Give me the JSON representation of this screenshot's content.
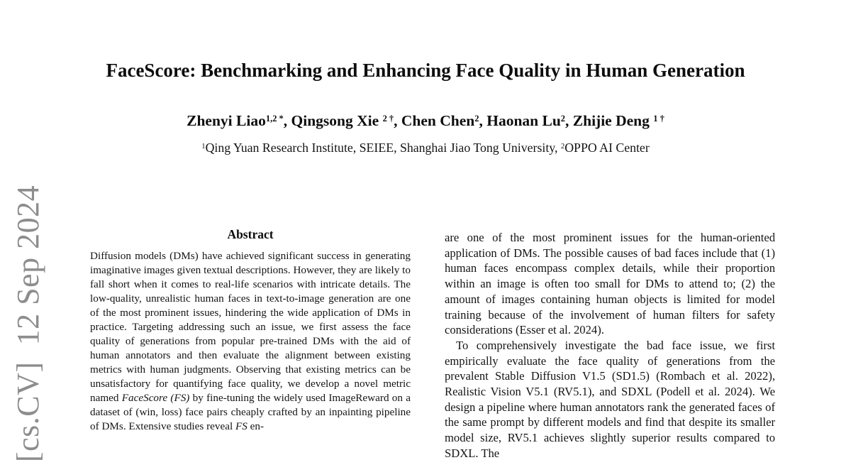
{
  "page": {
    "background": "#ffffff",
    "text_color": "#141414"
  },
  "arxiv_watermark": {
    "text": "[cs.CV]  12 Sep 2024",
    "color": "#8d8d8d"
  },
  "header": {
    "title": "FaceScore: Benchmarking and Enhancing Face Quality in Human Generation",
    "authors": [
      {
        "text": "Zhenyi Liao",
        "type": "normal"
      },
      {
        "text": "1,2 *",
        "type": "sup"
      },
      {
        "text": ", Qingsong Xie ",
        "type": "normal"
      },
      {
        "text": "2 †",
        "type": "sup"
      },
      {
        "text": ", Chen Chen",
        "type": "normal"
      },
      {
        "text": "2",
        "type": "sup"
      },
      {
        "text": ", Haonan Lu",
        "type": "normal"
      },
      {
        "text": "2",
        "type": "sup"
      },
      {
        "text": ", Zhijie Deng ",
        "type": "normal"
      },
      {
        "text": "1 †",
        "type": "sup"
      }
    ],
    "affiliation": [
      {
        "text": "1",
        "type": "sup"
      },
      {
        "text": "Qing Yuan Research Institute, SEIEE, Shanghai Jiao Tong University, ",
        "type": "normal"
      },
      {
        "text": "2",
        "type": "sup"
      },
      {
        "text": "OPPO AI Center",
        "type": "normal"
      }
    ]
  },
  "abstract": {
    "heading": "Abstract",
    "body": [
      {
        "text": "Diffusion models (DMs) have achieved significant success in generating imaginative images given textual descriptions. However, they are likely to fall short when it comes to real-life scenarios with intricate details. The low-quality, unrealistic human faces in text-to-image generation are one of the most prominent issues, hindering the wide application of DMs in practice. Targeting addressing such an issue, we first assess the face quality of generations from popular pre-trained DMs with the aid of human annotators and then evaluate the alignment between existing metrics with human judgments. Observing that existing metrics can be unsatisfactory for quantifying face quality, we develop a novel metric named ",
        "type": "normal"
      },
      {
        "text": "FaceScore (FS)",
        "type": "italic"
      },
      {
        "text": " by fine-tuning the widely used ImageReward on a dataset of (win, loss) face pairs cheaply crafted by an inpainting pipeline of DMs. Extensive studies reveal ",
        "type": "normal"
      },
      {
        "text": "FS",
        "type": "italic"
      },
      {
        "text": " en-",
        "type": "normal"
      }
    ]
  },
  "right_column": {
    "paragraph_1": "are one of the most prominent issues for the human-oriented application of DMs. The possible causes of bad faces include that (1) human faces encompass complex details, while their proportion within an image is often too small for DMs to attend to; (2) the amount of images containing human objects is limited for model training because of the involvement of human filters for safety considerations (Esser et al. 2024).",
    "paragraph_2": "To comprehensively investigate the bad face issue, we first empirically evaluate the face quality of generations from the prevalent Stable Diffusion V1.5 (SD1.5) (Rombach et al. 2022), Realistic Vision V5.1 (RV5.1), and SDXL (Podell et al. 2024). We design a pipeline where human annotators rank the generated faces of the same prompt by different models and find that despite its smaller model size, RV5.1 achieves slightly superior results compared to SDXL. The"
  }
}
